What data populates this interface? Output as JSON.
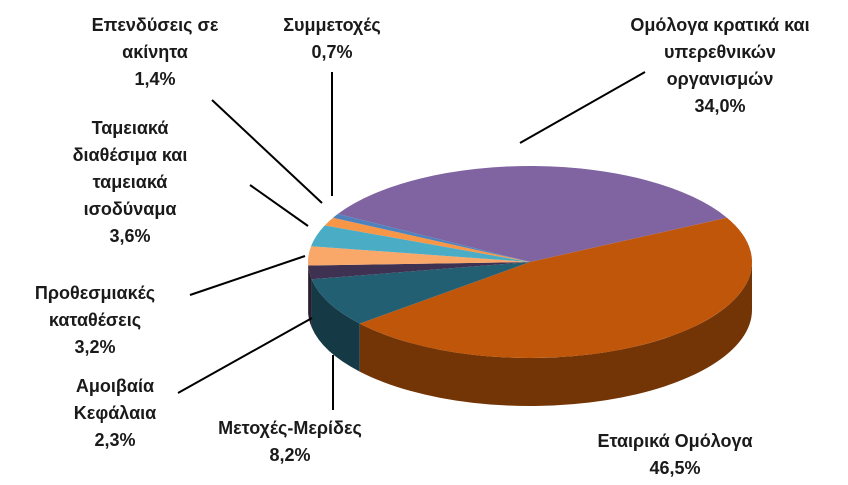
{
  "chart_data": {
    "type": "pie3d",
    "categories": [
      "Ομόλογα κρατικά και υπερεθνικών οργανισμών",
      "Εταιρικά Ομόλογα",
      "Μετοχές-Μερίδες",
      "Αμοιβαία Κεφάλαια",
      "Προθεσμιακές καταθέσεις",
      "Ταμειακά διαθέσιμα και ταμειακά ισοδύναμα",
      "Επενδύσεις σε ακίνητα",
      "Συμμετοχές"
    ],
    "values": [
      34.0,
      46.5,
      8.2,
      2.3,
      3.2,
      3.6,
      1.4,
      0.7
    ],
    "value_labels": [
      "34,0%",
      "46,5%",
      "8,2%",
      "2,3%",
      "3,2%",
      "3,6%",
      "1,4%",
      "0,7%"
    ],
    "colors": [
      "#8064a2",
      "#c0560a",
      "#235f73",
      "#3f3151",
      "#f9a86a",
      "#4bacc6",
      "#f79646",
      "#4f81bd"
    ]
  }
}
